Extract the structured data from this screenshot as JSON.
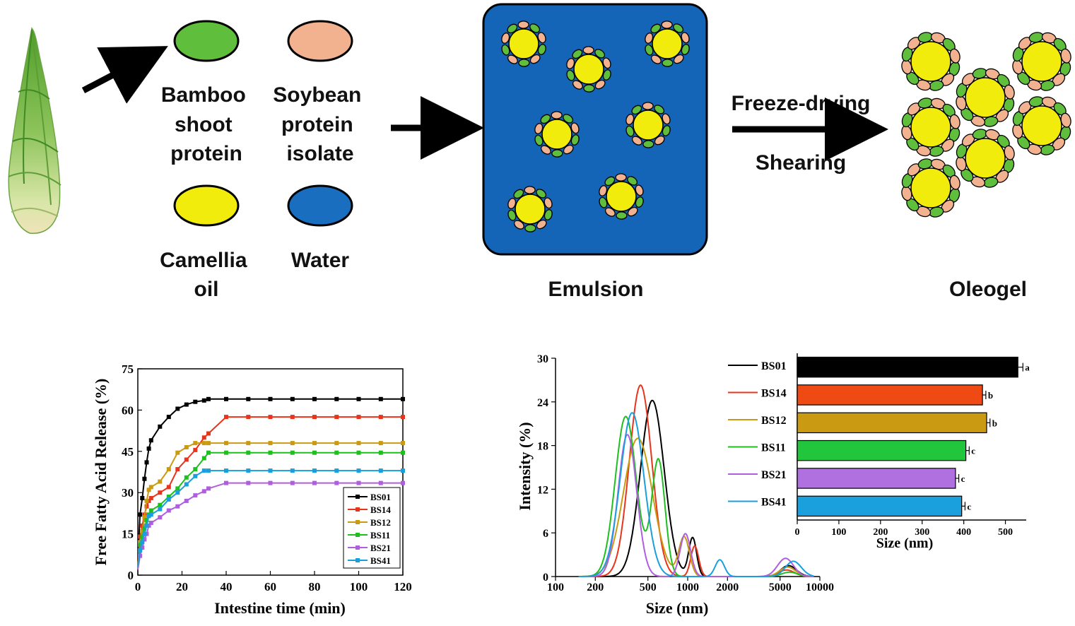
{
  "legend": {
    "bamboo": [
      "Bamboo",
      "shoot",
      "protein"
    ],
    "soybean": [
      "Soybean",
      "protein",
      "isolate"
    ],
    "camellia": [
      "Camellia",
      "oil"
    ],
    "water": [
      "Water"
    ]
  },
  "process": {
    "step1": "Freeze-drying",
    "step2": "Shearing",
    "emulsion_label": "Emulsion",
    "oleogel_label": "Oleogel"
  },
  "colors": {
    "bamboo_green": "#5fbf3c",
    "soybean_peach": "#f2b18f",
    "oil_yellow": "#f2ec0c",
    "water_blue": "#1a6ec0",
    "emulsion_blue": "#1464b8"
  },
  "chart_data": [
    {
      "type": "line",
      "title": "",
      "xlabel": "Intestine time (min)",
      "ylabel": "Free Fatty Acid Release (%)",
      "xlim": [
        0,
        120
      ],
      "ylim": [
        0,
        75
      ],
      "xticks": [
        0,
        20,
        40,
        60,
        80,
        100,
        120
      ],
      "yticks": [
        0,
        15,
        30,
        45,
        60,
        75
      ],
      "x": [
        0,
        1,
        2,
        3,
        4,
        5,
        6,
        10,
        14,
        18,
        22,
        26,
        30,
        32,
        40,
        50,
        60,
        70,
        80,
        90,
        100,
        110,
        120
      ],
      "series": [
        {
          "name": "BS01",
          "color": "#000000",
          "values": [
            5,
            22,
            28,
            35,
            41,
            46,
            49,
            54,
            57.5,
            60.5,
            62,
            63,
            63.5,
            64,
            64,
            64,
            64,
            64,
            64,
            64,
            64,
            64,
            64
          ]
        },
        {
          "name": "BS14",
          "color": "#e8341c",
          "values": [
            4,
            14,
            18,
            22,
            25,
            27,
            28,
            30,
            32,
            38.5,
            42,
            45.5,
            50,
            51.5,
            57.5,
            57.5,
            57.5,
            57.5,
            57.5,
            57.5,
            57.5,
            57.5,
            57.5
          ]
        },
        {
          "name": "BS12",
          "color": "#c99a12",
          "values": [
            3,
            12,
            16,
            21,
            27,
            31,
            32,
            34,
            38.5,
            44.5,
            46.5,
            48,
            48,
            48,
            48,
            48,
            48,
            48,
            48,
            48,
            48,
            48,
            48
          ]
        },
        {
          "name": "BS11",
          "color": "#1fbf1f",
          "values": [
            3,
            11,
            14,
            17,
            20,
            22,
            23.5,
            25.5,
            28.5,
            31.5,
            35.5,
            38.5,
            42.5,
            44.5,
            44.5,
            44.5,
            44.5,
            44.5,
            44.5,
            44.5,
            44.5,
            44.5,
            44.5
          ]
        },
        {
          "name": "BS21",
          "color": "#b05ee0",
          "values": [
            2,
            7,
            10,
            13,
            15,
            18,
            19,
            21,
            23.5,
            25,
            27,
            29,
            30.5,
            31.5,
            33.5,
            33.5,
            33.5,
            33.5,
            33.5,
            33.5,
            33.5,
            33.5,
            33.5
          ]
        },
        {
          "name": "BS41",
          "color": "#1a9fdc",
          "values": [
            3,
            9,
            12,
            15,
            18,
            21.5,
            22,
            24,
            27.5,
            30,
            33,
            36,
            38,
            38,
            38,
            38,
            38,
            38,
            38,
            38,
            38,
            38,
            38
          ]
        }
      ],
      "legend": [
        "BS01",
        "BS14",
        "BS12",
        "BS11",
        "BS21",
        "BS41"
      ]
    },
    {
      "type": "line",
      "title": "",
      "xlabel": "Size (nm)",
      "ylabel": "Intensity (%)",
      "xscale": "log",
      "xlim": [
        100,
        10000
      ],
      "ylim": [
        0,
        30
      ],
      "xticks": [
        100,
        200,
        500,
        1000,
        2000,
        5000,
        10000
      ],
      "yticks": [
        0,
        6,
        12,
        18,
        24,
        30
      ],
      "series": [
        {
          "name": "BS01",
          "color": "#000000",
          "peaks": [
            {
              "mu": 540,
              "sigma": 0.09,
              "h": 24.2
            },
            {
              "mu": 1090,
              "sigma": 0.03,
              "h": 5.3
            },
            {
              "mu": 5800,
              "sigma": 0.06,
              "h": 1.5
            }
          ]
        },
        {
          "name": "BS14",
          "color": "#e8341c",
          "peaks": [
            {
              "mu": 440,
              "sigma": 0.085,
              "h": 26.3
            },
            {
              "mu": 1130,
              "sigma": 0.03,
              "h": 4.2
            },
            {
              "mu": 5600,
              "sigma": 0.06,
              "h": 0.9
            }
          ]
        },
        {
          "name": "BS12",
          "color": "#c99a12",
          "peaks": [
            {
              "mu": 420,
              "sigma": 0.11,
              "h": 19
            },
            {
              "mu": 940,
              "sigma": 0.04,
              "h": 5.4
            },
            {
              "mu": 5700,
              "sigma": 0.06,
              "h": 1.3
            }
          ]
        },
        {
          "name": "BS11",
          "color": "#1fbf1f",
          "peaks": [
            {
              "mu": 340,
              "sigma": 0.08,
              "h": 22
            },
            {
              "mu": 600,
              "sigma": 0.05,
              "h": 16
            },
            {
              "mu": 5900,
              "sigma": 0.06,
              "h": 0.6
            }
          ]
        },
        {
          "name": "BS21",
          "color": "#b05ee0",
          "peaks": [
            {
              "mu": 350,
              "sigma": 0.07,
              "h": 19.5
            },
            {
              "mu": 960,
              "sigma": 0.04,
              "h": 5.9
            },
            {
              "mu": 5500,
              "sigma": 0.06,
              "h": 2.5
            }
          ]
        },
        {
          "name": "BS41",
          "color": "#1a9fdc",
          "peaks": [
            {
              "mu": 380,
              "sigma": 0.09,
              "h": 22.5
            },
            {
              "mu": 1750,
              "sigma": 0.035,
              "h": 2.3
            },
            {
              "mu": 6300,
              "sigma": 0.06,
              "h": 2.1
            }
          ]
        }
      ],
      "legend": [
        "BS01",
        "BS14",
        "BS12",
        "BS11",
        "BS21",
        "BS41"
      ]
    },
    {
      "type": "bar",
      "orientation": "horizontal",
      "title": "",
      "xlabel": "Size (nm)",
      "xlim": [
        0,
        550
      ],
      "xticks": [
        0,
        100,
        200,
        300,
        400,
        500
      ],
      "categories": [
        "BS01",
        "BS14",
        "BS12",
        "BS11",
        "BS21",
        "BS41"
      ],
      "values": [
        530,
        445,
        455,
        405,
        380,
        395
      ],
      "errors": [
        12,
        8,
        8,
        8,
        8,
        8
      ],
      "letters": [
        "a",
        "b",
        "b",
        "c",
        "c",
        "c"
      ],
      "colors": [
        "#000000",
        "#f04a14",
        "#c99a12",
        "#22c63c",
        "#b070e0",
        "#1aa0dc"
      ]
    }
  ]
}
